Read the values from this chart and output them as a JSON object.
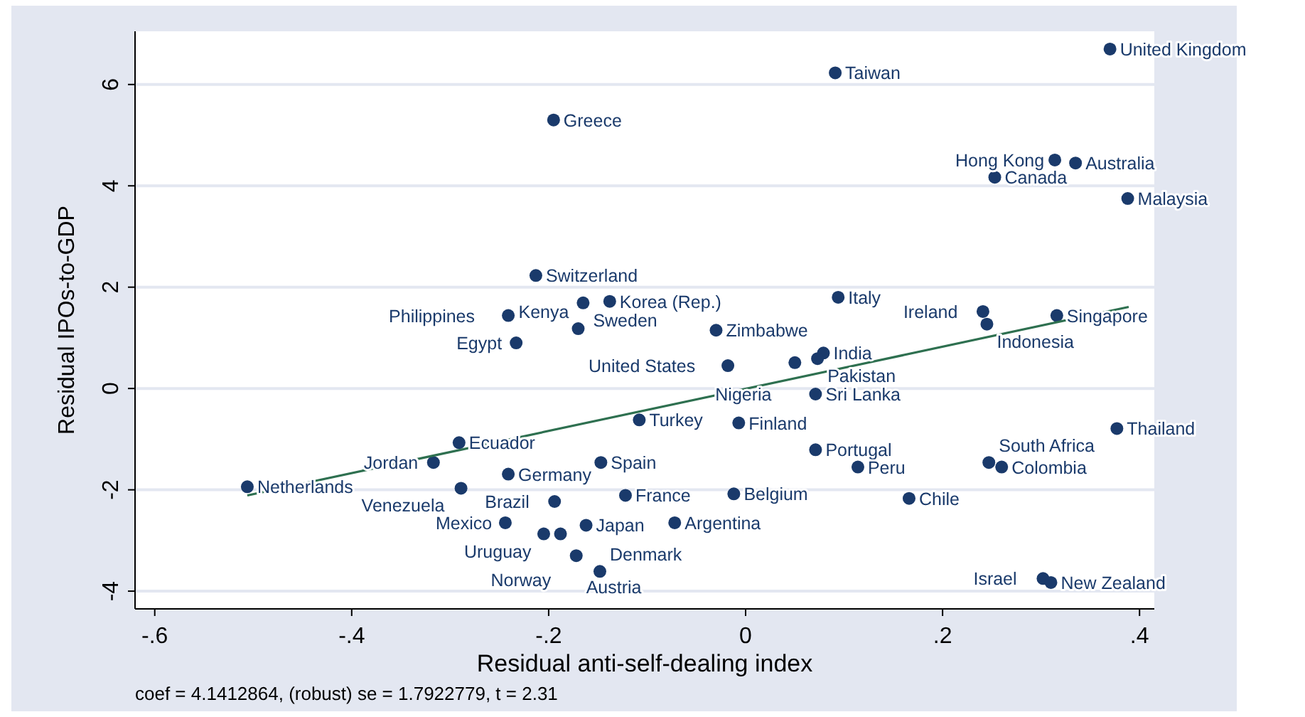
{
  "chart_data": {
    "type": "scatter",
    "xlabel": "Residual anti-self-dealing index",
    "ylabel": "Residual IPOs-to-GDP",
    "xlim": [
      -0.62,
      0.415
    ],
    "ylim": [
      -4.35,
      7.05
    ],
    "xticks": [
      {
        "value": -0.6,
        "label": "-.6"
      },
      {
        "value": -0.4,
        "label": "-.4"
      },
      {
        "value": -0.2,
        "label": "-.2"
      },
      0,
      {
        "value": 0.2,
        "label": ".2"
      },
      {
        "value": 0.4,
        "label": ".4"
      }
    ],
    "yticks": [
      -4,
      -2,
      0,
      2,
      4,
      6
    ],
    "grid": "y",
    "marker": "circle",
    "series": [
      {
        "color": "#1a3a6b",
        "x": [
          0.37,
          0.091,
          -0.195,
          0.314,
          0.335,
          0.253,
          0.388,
          -0.213,
          -0.165,
          -0.138,
          -0.241,
          -0.17,
          -0.233,
          -0.03,
          0.094,
          0.241,
          0.245,
          0.316,
          0.079,
          0.073,
          0.05,
          -0.018,
          0.071,
          -0.108,
          -0.007,
          0.377,
          0.071,
          0.114,
          0.247,
          0.26,
          -0.291,
          -0.317,
          -0.241,
          -0.147,
          -0.506,
          -0.289,
          -0.194,
          -0.122,
          -0.012,
          0.166,
          -0.244,
          -0.162,
          -0.072,
          -0.205,
          -0.188,
          -0.172,
          -0.148,
          0.302,
          0.31
        ],
        "values": [
          6.7,
          6.23,
          5.3,
          4.51,
          4.45,
          4.17,
          3.75,
          2.23,
          1.69,
          1.72,
          1.44,
          1.18,
          0.9,
          1.15,
          1.8,
          1.52,
          1.27,
          1.44,
          0.7,
          0.59,
          0.51,
          0.45,
          -0.11,
          -0.62,
          -0.68,
          -0.79,
          -1.21,
          -1.55,
          -1.46,
          -1.55,
          -1.07,
          -1.46,
          -1.69,
          -1.46,
          -1.94,
          -1.97,
          -2.23,
          -2.11,
          -2.08,
          -2.17,
          -2.65,
          -2.7,
          -2.65,
          -2.87,
          -2.87,
          -3.3,
          -3.61,
          -3.75,
          -3.83
        ]
      },
      {
        "type": "line",
        "color": "#2e7050",
        "marker": "none",
        "x": [
          -0.506,
          0.389
        ],
        "values": [
          -2.11,
          1.61
        ]
      }
    ],
    "annotations": [
      {
        "text": "United Kingdom",
        "x": 0.37,
        "y": 6.7
      },
      {
        "text": "Taiwan",
        "x": 0.091,
        "y": 6.23
      },
      {
        "text": "Greece",
        "x": -0.195,
        "y": 5.3
      },
      {
        "text": "Hong Kong",
        "x": 0.314,
        "y": 4.51
      },
      {
        "text": "Australia",
        "x": 0.335,
        "y": 4.45
      },
      {
        "text": "Canada",
        "x": 0.253,
        "y": 4.17
      },
      {
        "text": "Malaysia",
        "x": 0.388,
        "y": 3.75
      },
      {
        "text": "Switzerland",
        "x": -0.213,
        "y": 2.23
      },
      {
        "text": "Sweden",
        "x": -0.165,
        "y": 1.69
      },
      {
        "text": "Korea (Rep.)",
        "x": -0.138,
        "y": 1.72
      },
      {
        "text": "Philippines",
        "x": -0.241,
        "y": 1.44
      },
      {
        "text": "Kenya",
        "x": -0.17,
        "y": 1.18
      },
      {
        "text": "Egypt",
        "x": -0.233,
        "y": 0.9
      },
      {
        "text": "Zimbabwe",
        "x": -0.03,
        "y": 1.15
      },
      {
        "text": "Italy",
        "x": 0.094,
        "y": 1.8
      },
      {
        "text": "Ireland",
        "x": 0.241,
        "y": 1.52
      },
      {
        "text": "Indonesia",
        "x": 0.245,
        "y": 1.27
      },
      {
        "text": "Singapore",
        "x": 0.316,
        "y": 1.44
      },
      {
        "text": "India",
        "x": 0.079,
        "y": 0.7
      },
      {
        "text": "Pakistan",
        "x": 0.073,
        "y": 0.59
      },
      {
        "text": "Nigeria",
        "x": 0.05,
        "y": 0.51
      },
      {
        "text": "United States",
        "x": -0.018,
        "y": 0.45
      },
      {
        "text": "Sri Lanka",
        "x": 0.071,
        "y": -0.11
      },
      {
        "text": "Turkey",
        "x": -0.108,
        "y": -0.62
      },
      {
        "text": "Finland",
        "x": -0.007,
        "y": -0.68
      },
      {
        "text": "Thailand",
        "x": 0.377,
        "y": -0.79
      },
      {
        "text": "Portugal",
        "x": 0.071,
        "y": -1.21
      },
      {
        "text": "Peru",
        "x": 0.114,
        "y": -1.55
      },
      {
        "text": "South Africa",
        "x": 0.247,
        "y": -1.46
      },
      {
        "text": "Colombia",
        "x": 0.26,
        "y": -1.55
      },
      {
        "text": "Ecuador",
        "x": -0.291,
        "y": -1.07
      },
      {
        "text": "Jordan",
        "x": -0.317,
        "y": -1.46
      },
      {
        "text": "Germany",
        "x": -0.241,
        "y": -1.69
      },
      {
        "text": "Spain",
        "x": -0.147,
        "y": -1.46
      },
      {
        "text": "Netherlands",
        "x": -0.506,
        "y": -1.94
      },
      {
        "text": "Venezuela",
        "x": -0.289,
        "y": -1.97
      },
      {
        "text": "Brazil",
        "x": -0.194,
        "y": -2.23
      },
      {
        "text": "France",
        "x": -0.122,
        "y": -2.11
      },
      {
        "text": "Belgium",
        "x": -0.012,
        "y": -2.08
      },
      {
        "text": "Chile",
        "x": 0.166,
        "y": -2.17
      },
      {
        "text": "Mexico",
        "x": -0.244,
        "y": -2.65
      },
      {
        "text": "Japan",
        "x": -0.162,
        "y": -2.7
      },
      {
        "text": "Argentina",
        "x": -0.072,
        "y": -2.65
      },
      {
        "text": "Uruguay",
        "x": -0.205,
        "y": -2.87
      },
      {
        "text": "Norway",
        "x": -0.188,
        "y": -2.87
      },
      {
        "text": "Austria",
        "x": -0.172,
        "y": -3.3
      },
      {
        "text": "Denmark",
        "x": -0.148,
        "y": -3.61
      },
      {
        "text": "Israel",
        "x": 0.302,
        "y": -3.75
      },
      {
        "text": "New Zealand",
        "x": 0.31,
        "y": -3.83
      },
      "coef = 4.1412864, (robust) se = 1.7922779, t = 2.31"
    ]
  }
}
